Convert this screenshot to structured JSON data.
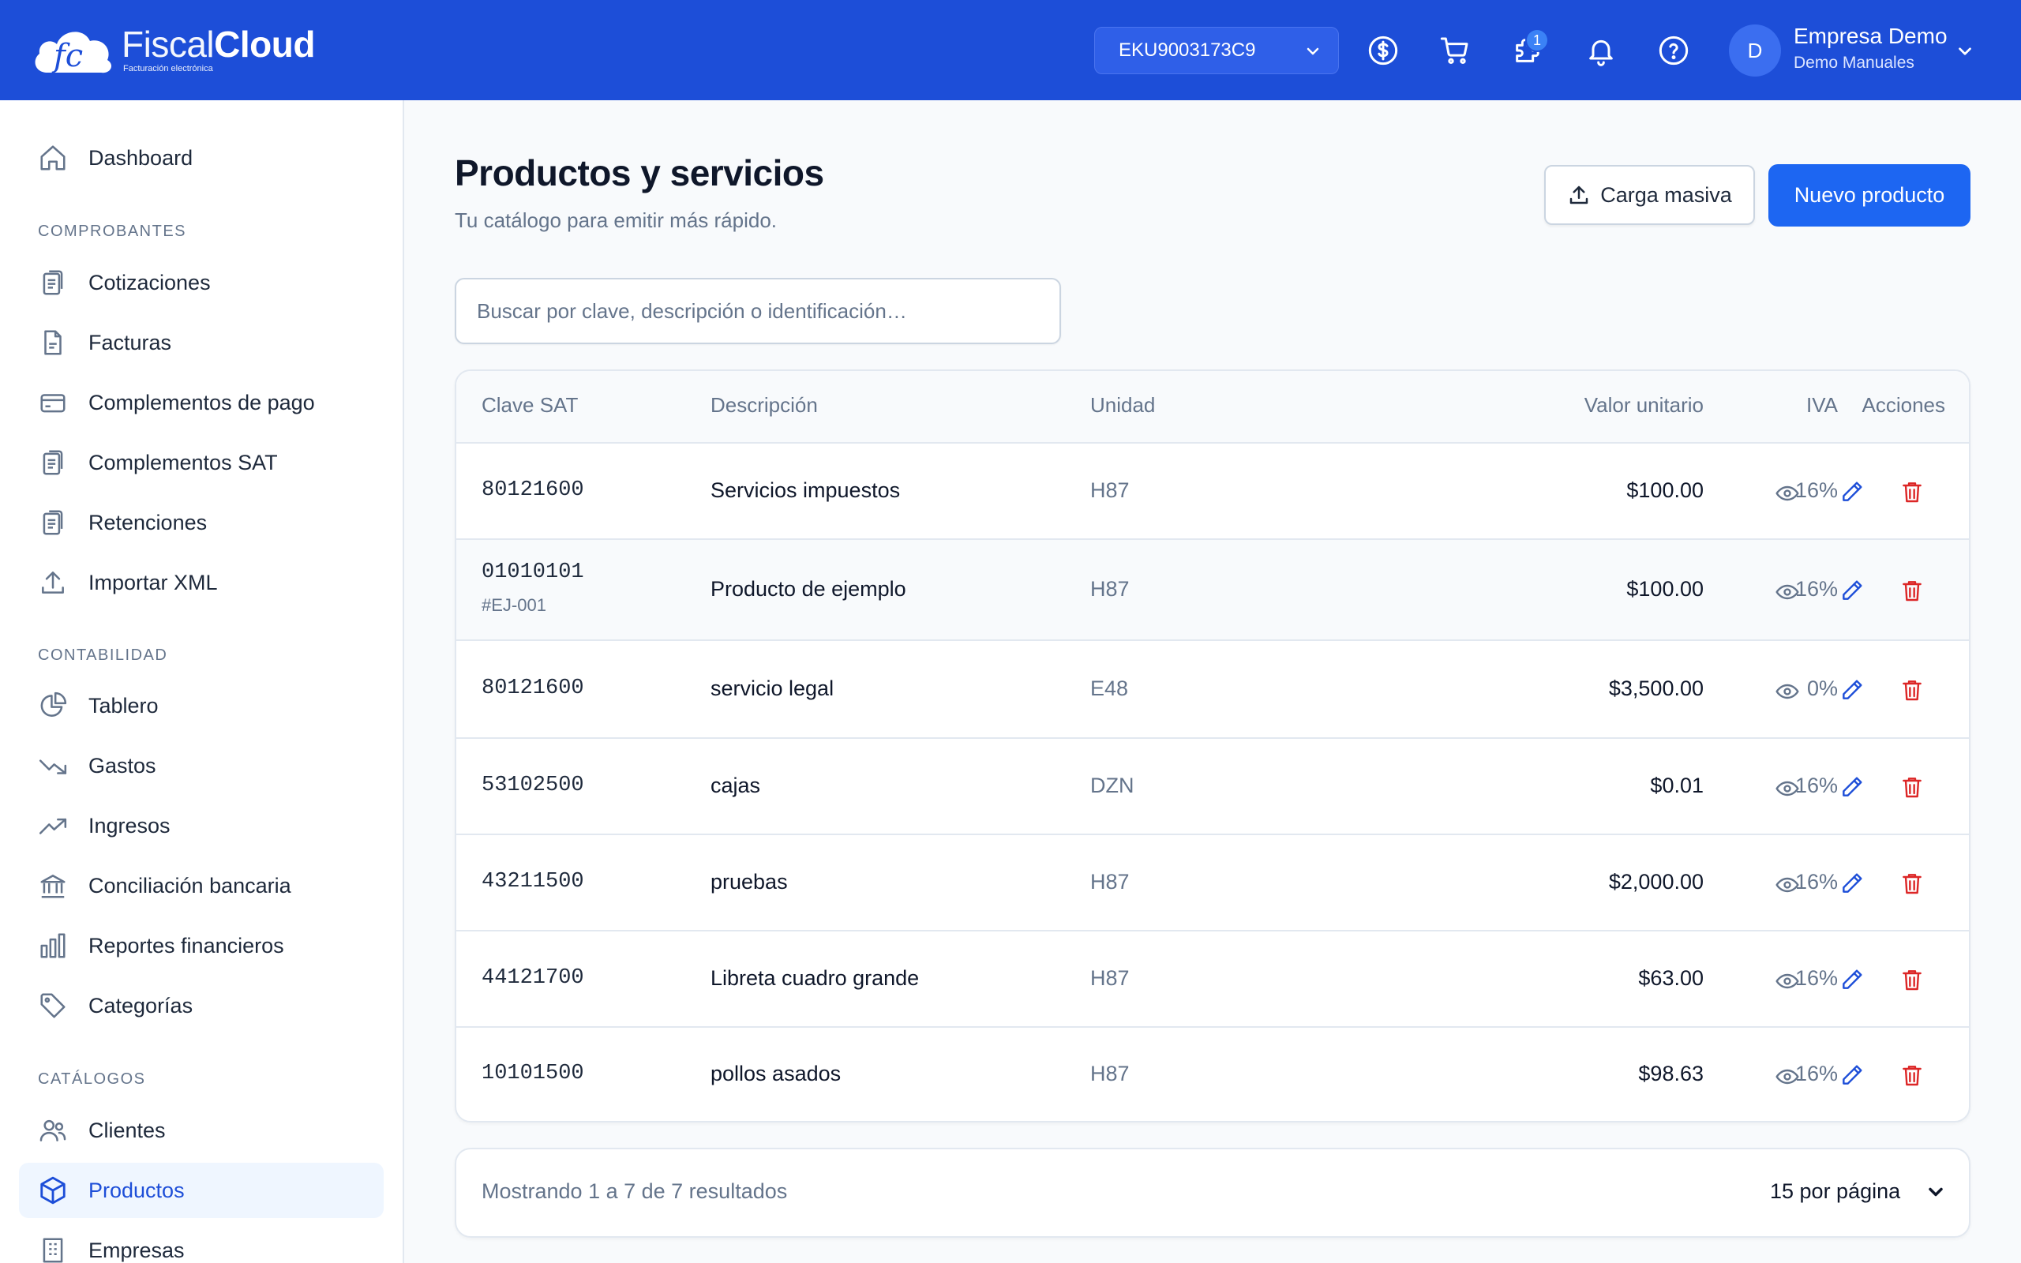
{
  "header": {
    "brand_thin": "Fiscal",
    "brand_bold": "Cloud",
    "brand_tagline": "Facturación electrónica",
    "rfc_selected": "EKU9003173C9",
    "notification_badge": "1",
    "avatar_initial": "D",
    "user_name": "Empresa Demo",
    "user_sub": "Demo Manuales",
    "accent_color": "#1d4ed8"
  },
  "sidebar": {
    "dashboard": "Dashboard",
    "section_comprobantes": "COMPROBANTES",
    "cotizaciones": "Cotizaciones",
    "facturas": "Facturas",
    "complementos_pago": "Complementos de pago",
    "complementos_sat": "Complementos SAT",
    "retenciones": "Retenciones",
    "importar_xml": "Importar XML",
    "section_contabilidad": "CONTABILIDAD",
    "tablero": "Tablero",
    "gastos": "Gastos",
    "ingresos": "Ingresos",
    "conciliacion": "Conciliación bancaria",
    "reportes": "Reportes financieros",
    "categorias": "Categorías",
    "section_catalogos": "CATÁLOGOS",
    "clientes": "Clientes",
    "productos": "Productos",
    "empresas": "Empresas"
  },
  "main": {
    "title": "Productos y servicios",
    "subtitle": "Tu catálogo para emitir más rápido.",
    "bulk_button": "Carga masiva",
    "new_button": "Nuevo producto",
    "search_placeholder": "Buscar por clave, descripción o identificación…"
  },
  "table": {
    "headers": {
      "clave": "Clave SAT",
      "descripcion": "Descripción",
      "unidad": "Unidad",
      "valor": "Valor unitario",
      "iva": "IVA",
      "acciones": "Acciones"
    },
    "rows": [
      {
        "clave": "80121600",
        "id": "",
        "descripcion": "Servicios impuestos",
        "unidad": "H87",
        "valor": "$100.00",
        "iva": "16%"
      },
      {
        "clave": "01010101",
        "id": "#EJ-001",
        "descripcion": "Producto de ejemplo",
        "unidad": "H87",
        "valor": "$100.00",
        "iva": "16%"
      },
      {
        "clave": "80121600",
        "id": "",
        "descripcion": "servicio legal",
        "unidad": "E48",
        "valor": "$3,500.00",
        "iva": "0%"
      },
      {
        "clave": "53102500",
        "id": "",
        "descripcion": "cajas",
        "unidad": "DZN",
        "valor": "$0.01",
        "iva": "16%"
      },
      {
        "clave": "43211500",
        "id": "",
        "descripcion": "pruebas",
        "unidad": "H87",
        "valor": "$2,000.00",
        "iva": "16%"
      },
      {
        "clave": "44121700",
        "id": "",
        "descripcion": "Libreta cuadro grande",
        "unidad": "H87",
        "valor": "$63.00",
        "iva": "16%"
      },
      {
        "clave": "10101500",
        "id": "",
        "descripcion": "pollos asados",
        "unidad": "H87",
        "valor": "$98.63",
        "iva": "16%"
      }
    ]
  },
  "pager": {
    "summary": "Mostrando 1 a 7 de 7 resultados",
    "per_page": "15 por página"
  }
}
